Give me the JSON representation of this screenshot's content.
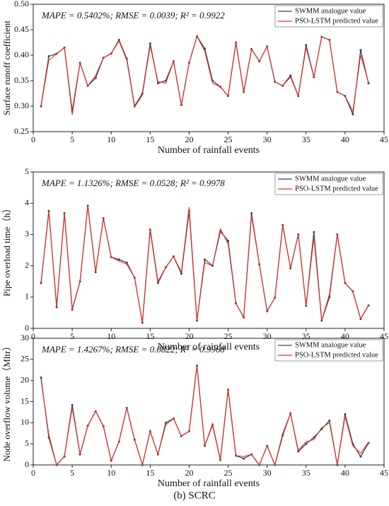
{
  "caption": "(b) SCRC",
  "chart_data": [
    {
      "type": "line",
      "annotation": "MAPE = 0.5402%; RMSE = 0.0039; R² = 0.9922",
      "x_label": "Number of rainfall events",
      "y_label": "Surface runoff coefficient",
      "x": [
        1,
        2,
        3,
        4,
        5,
        6,
        7,
        8,
        9,
        10,
        11,
        12,
        13,
        14,
        15,
        16,
        17,
        18,
        19,
        20,
        21,
        22,
        23,
        24,
        25,
        26,
        27,
        28,
        29,
        30,
        31,
        32,
        33,
        34,
        35,
        36,
        37,
        38,
        39,
        40,
        41,
        42,
        43
      ],
      "series": [
        {
          "name": "SWMM analogue value",
          "color": "#3b4150",
          "marker": true,
          "values": [
            0.3,
            0.398,
            0.403,
            0.415,
            0.29,
            0.385,
            0.34,
            0.355,
            0.395,
            0.403,
            0.43,
            0.393,
            0.3,
            0.325,
            0.423,
            0.345,
            0.35,
            0.388,
            0.302,
            0.385,
            0.437,
            0.413,
            0.35,
            0.338,
            0.32,
            0.425,
            0.328,
            0.412,
            0.388,
            0.417,
            0.348,
            0.34,
            0.36,
            0.32,
            0.42,
            0.357,
            0.436,
            0.43,
            0.328,
            0.32,
            0.284,
            0.41,
            0.345
          ]
        },
        {
          "name": "PSO-LSTM predicted value",
          "color": "#e8332c",
          "marker": false,
          "values": [
            0.3,
            0.39,
            0.403,
            0.415,
            0.283,
            0.385,
            0.34,
            0.36,
            0.395,
            0.403,
            0.428,
            0.39,
            0.298,
            0.322,
            0.418,
            0.348,
            0.345,
            0.388,
            0.302,
            0.385,
            0.437,
            0.408,
            0.345,
            0.338,
            0.32,
            0.425,
            0.328,
            0.412,
            0.388,
            0.417,
            0.348,
            0.34,
            0.357,
            0.32,
            0.415,
            0.357,
            0.436,
            0.43,
            0.328,
            0.32,
            0.29,
            0.4,
            0.347
          ]
        }
      ],
      "xlim": [
        0,
        45
      ],
      "xticks": [
        0,
        5,
        10,
        15,
        20,
        25,
        30,
        35,
        40,
        45
      ],
      "ylim": [
        0.25,
        0.5
      ],
      "yticks": [
        0.25,
        {
          "value": 0.3,
          "label": "0.30"
        },
        0.35,
        {
          "value": 0.4,
          "label": "0.40"
        },
        0.45,
        {
          "value": 0.5,
          "label": "0.50"
        }
      ],
      "legend": "upper right"
    },
    {
      "type": "line",
      "annotation": "MAPE = 1.1326%; RMSE = 0.0528; R² = 0.9978",
      "x_label": "Number of rainfall events",
      "y_label": "Pipe overload time（h）",
      "x": [
        1,
        2,
        3,
        4,
        5,
        6,
        7,
        8,
        9,
        10,
        11,
        12,
        13,
        14,
        15,
        16,
        17,
        18,
        19,
        20,
        21,
        22,
        23,
        24,
        25,
        26,
        27,
        28,
        29,
        30,
        31,
        32,
        33,
        34,
        35,
        36,
        37,
        38,
        39,
        40,
        41,
        42,
        43
      ],
      "series": [
        {
          "name": "SWMM analogue value",
          "color": "#3b4150",
          "marker": true,
          "values": [
            1.45,
            3.75,
            0.68,
            3.68,
            0.6,
            1.5,
            3.92,
            1.8,
            3.52,
            2.28,
            2.2,
            2.1,
            1.62,
            0.18,
            3.15,
            1.45,
            1.95,
            2.3,
            1.75,
            3.75,
            0.25,
            2.2,
            2.0,
            3.1,
            2.8,
            0.8,
            0.35,
            3.68,
            2.05,
            0.55,
            0.98,
            3.3,
            1.92,
            3.0,
            0.72,
            3.08,
            0.25,
            1.0,
            3.0,
            1.45,
            1.18,
            0.3,
            0.73
          ]
        },
        {
          "name": "PSO-LSTM predicted value",
          "color": "#e8332c",
          "marker": false,
          "values": [
            1.45,
            3.75,
            0.68,
            3.68,
            0.6,
            1.5,
            3.92,
            1.8,
            3.52,
            2.28,
            2.15,
            2.05,
            1.62,
            0.18,
            3.2,
            1.5,
            1.95,
            2.3,
            1.8,
            3.88,
            0.25,
            2.1,
            2.0,
            3.18,
            2.7,
            0.8,
            0.35,
            3.6,
            2.05,
            0.55,
            0.98,
            3.3,
            1.92,
            3.0,
            0.72,
            2.9,
            0.25,
            1.1,
            3.0,
            1.45,
            1.18,
            0.3,
            0.73
          ]
        }
      ],
      "xlim": [
        0,
        45
      ],
      "xticks": [
        0,
        5,
        10,
        15,
        20,
        25,
        30,
        35,
        40,
        45
      ],
      "ylim": [
        0,
        5
      ],
      "yticks": [
        0,
        1,
        2,
        3,
        4,
        5
      ],
      "legend": "upper right"
    },
    {
      "type": "line",
      "annotation": "MAPE = 1.4267%; RMSE = 0.0822; R² = 0.9968",
      "x_label": "Number of rainfall events",
      "y_label": "Node overflow volume（Mltr）",
      "x": [
        1,
        2,
        3,
        4,
        5,
        6,
        7,
        8,
        9,
        10,
        11,
        12,
        13,
        14,
        15,
        16,
        17,
        18,
        19,
        20,
        21,
        22,
        23,
        24,
        25,
        26,
        27,
        28,
        29,
        30,
        31,
        32,
        33,
        34,
        35,
        36,
        37,
        38,
        39,
        40,
        41,
        42,
        43
      ],
      "series": [
        {
          "name": "SWMM analogue value",
          "color": "#3b4150",
          "marker": true,
          "values": [
            20.7,
            6.5,
            0,
            2,
            14.2,
            2.5,
            9.3,
            12.7,
            9.2,
            1.0,
            5.5,
            13.5,
            6,
            0,
            8,
            2.5,
            10,
            11,
            6.8,
            8,
            23.5,
            4.5,
            9.5,
            1.2,
            17.8,
            2.2,
            1.5,
            2.5,
            0,
            4.5,
            0,
            7,
            12.2,
            3.2,
            5,
            6.5,
            8.5,
            10.5,
            0,
            12,
            5,
            2,
            5.2
          ]
        },
        {
          "name": "PSO-LSTM predicted value",
          "color": "#e8332c",
          "marker": false,
          "values": [
            20.2,
            7.2,
            0,
            2,
            13.5,
            2.5,
            9.3,
            12.7,
            9.2,
            1.0,
            5.5,
            13.5,
            6,
            0,
            8,
            2.5,
            9.5,
            11,
            6.8,
            8,
            23.5,
            4.5,
            9.8,
            1.2,
            17.8,
            2.2,
            2.0,
            2.5,
            0,
            4.5,
            0,
            7.5,
            12.2,
            3.5,
            5.5,
            6,
            8.8,
            10,
            0,
            11.5,
            4.5,
            2.8,
            5.4
          ]
        }
      ],
      "xlim": [
        0,
        45
      ],
      "xticks": [
        0,
        5,
        10,
        15,
        20,
        25,
        30,
        35,
        40,
        45
      ],
      "ylim": [
        0,
        30
      ],
      "yticks": [
        0,
        5,
        10,
        15,
        20,
        25,
        30
      ],
      "legend": "upper right"
    }
  ]
}
